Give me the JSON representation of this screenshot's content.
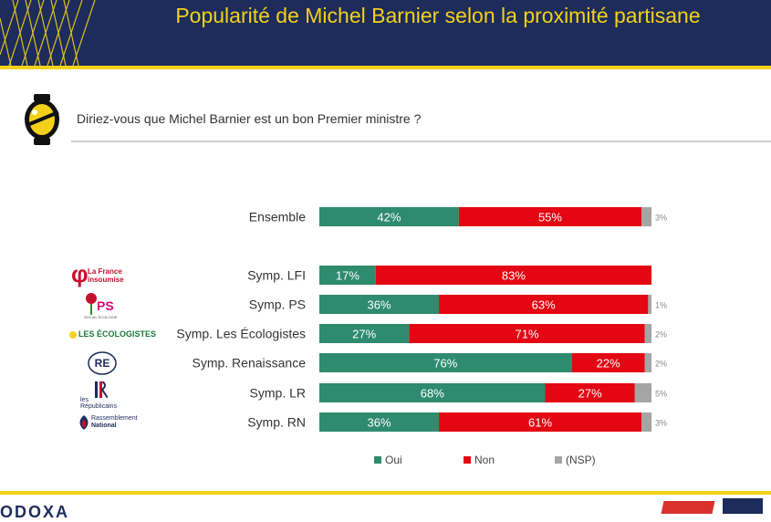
{
  "header": {
    "title": "Popularité de Michel Barnier selon la proximité partisane"
  },
  "question": "Diriez-vous que Michel Barnier est un bon Premier ministre ?",
  "colors": {
    "oui": "#2e8b6e",
    "non": "#e40613",
    "nsp": "#a5a5a5",
    "navy": "#1d2c5a",
    "gold": "#f3d11a"
  },
  "party_logos": {
    "lfi": "La France insoumise",
    "ps": "PS",
    "ps_sub": "SOCIAL ÉCOLOGIE",
    "eco": "LES ÉCOLOGISTES",
    "re": "RE",
    "lr_l1": "les",
    "lr_l2": "Républicains",
    "rn_l1": "Rassemblement",
    "rn_l2": "National"
  },
  "footer": {
    "brand": "ODOXA"
  },
  "chart_data": {
    "type": "bar",
    "orientation": "horizontal",
    "stacked": true,
    "title": "Popularité de Michel Barnier selon la proximité partisane",
    "categories": [
      "Ensemble",
      "Symp. LFI",
      "Symp. PS",
      "Symp. Les Écologistes",
      "Symp. Renaissance",
      "Symp. LR",
      "Symp. RN"
    ],
    "series": [
      {
        "name": "Oui",
        "values": [
          42,
          17,
          36,
          27,
          76,
          68,
          36
        ]
      },
      {
        "name": "Non",
        "values": [
          55,
          83,
          63,
          71,
          22,
          27,
          61
        ]
      },
      {
        "name": "(NSP)",
        "values": [
          3,
          0,
          1,
          2,
          2,
          5,
          3
        ]
      }
    ],
    "value_labels": {
      "Oui": [
        "42%",
        "17%",
        "36%",
        "27%",
        "76%",
        "68%",
        "36%"
      ],
      "Non": [
        "55%",
        "83%",
        "63%",
        "71%",
        "22%",
        "27%",
        "61%"
      ],
      "(NSP)": [
        "3%",
        "",
        "1%",
        "2%",
        "2%",
        "5%",
        "3%"
      ]
    },
    "xlim": [
      0,
      100
    ],
    "legend": [
      "Oui",
      "Non",
      "(NSP)"
    ],
    "legend_position": "bottom"
  }
}
